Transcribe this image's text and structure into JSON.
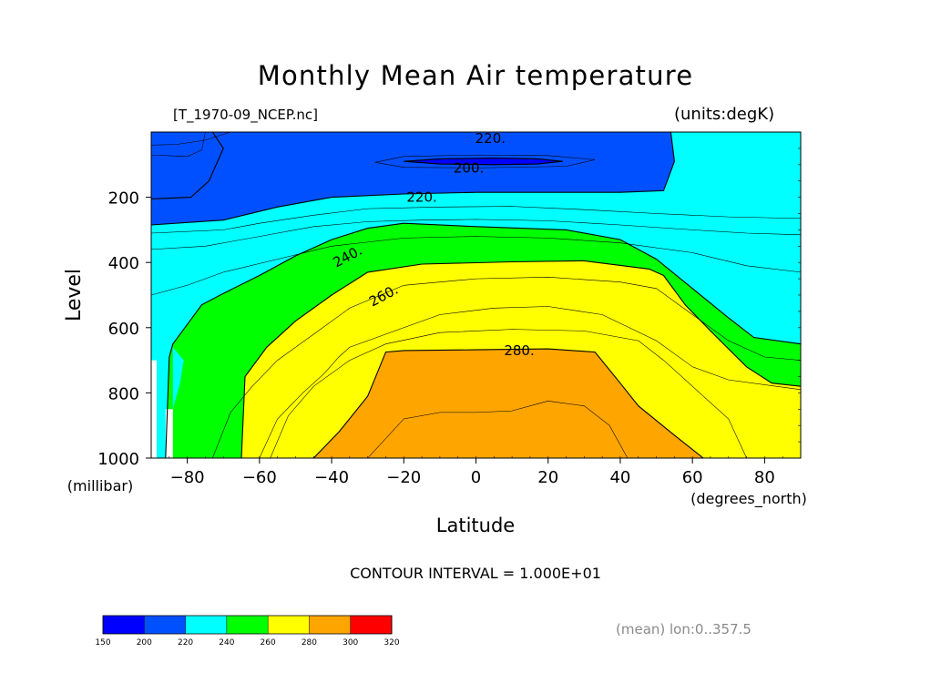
{
  "title": "Monthly Mean Air temperature",
  "dataset": "[T_1970-09_NCEP.nc]",
  "units": "(units:degK)",
  "contour_note": "CONTOUR INTERVAL = 1.000E+01",
  "mean_note": "(mean) lon:0..357.5",
  "chart_data": {
    "type": "heatmap",
    "subtype": "filled contour",
    "title": "Monthly Mean Air temperature",
    "xlabel": "Latitude",
    "xunits": "(degrees_north)",
    "ylabel": "Level",
    "yunits": "(millibar)",
    "xlim": [
      -90,
      90
    ],
    "ylim": [
      1000,
      0
    ],
    "x_ticks": [
      -80,
      -60,
      -40,
      -20,
      0,
      20,
      40,
      60,
      80
    ],
    "x_tick_labels": [
      "−80",
      "−60",
      "−40",
      "−20",
      "0",
      "20",
      "40",
      "60",
      "80"
    ],
    "y_ticks": [
      200,
      400,
      600,
      800,
      1000
    ],
    "y_tick_labels": [
      "200",
      "400",
      "600",
      "800",
      "1000"
    ],
    "contour_interval": 10,
    "contour_labels": [
      {
        "text": "220.",
        "lat": 4,
        "level": 20
      },
      {
        "text": "200.",
        "lat": -2,
        "level": 110
      },
      {
        "text": "220.",
        "lat": -15,
        "level": 200
      },
      {
        "text": "240.",
        "lat": -35,
        "level": 380
      },
      {
        "text": "260.",
        "lat": -25,
        "level": 500
      },
      {
        "text": "280.",
        "lat": 12,
        "level": 670
      }
    ],
    "colorbar": {
      "boundaries": [
        150,
        200,
        220,
        240,
        260,
        280,
        300,
        320
      ],
      "labels": [
        "150",
        "200",
        "220",
        "240",
        "260",
        "280",
        "300",
        "320"
      ],
      "colors": [
        "#0000ff",
        "#0050ff",
        "#00ffff",
        "#00ff00",
        "#ffff00",
        "#ffa500",
        "#ff0000"
      ]
    },
    "regions": [
      {
        "range": "<200",
        "color": "#0000ff",
        "points": [
          [
            -90,
            0
          ],
          [
            -73,
            0
          ],
          [
            -70,
            50
          ],
          [
            -74,
            150
          ],
          [
            -79,
            200
          ],
          [
            -90,
            205
          ]
        ]
      },
      {
        "range": "200-220",
        "color": "#0050ff",
        "points": [
          [
            -90,
            0
          ],
          [
            54,
            0
          ],
          [
            55,
            90
          ],
          [
            52,
            180
          ],
          [
            40,
            185
          ],
          [
            20,
            185
          ],
          [
            0,
            185
          ],
          [
            -20,
            190
          ],
          [
            -40,
            200
          ],
          [
            -55,
            230
          ],
          [
            -70,
            270
          ],
          [
            -90,
            285
          ]
        ]
      },
      {
        "range": "<200",
        "color": "#0000ff",
        "points": [
          [
            -20,
            90
          ],
          [
            -10,
            82
          ],
          [
            5,
            80
          ],
          [
            17,
            82
          ],
          [
            24,
            90
          ],
          [
            17,
            98
          ],
          [
            5,
            100
          ],
          [
            -10,
            98
          ]
        ]
      },
      {
        "range": "240-260",
        "color": "#00ff00",
        "points": [
          [
            90,
            650
          ],
          [
            77,
            630
          ],
          [
            70,
            570
          ],
          [
            60,
            480
          ],
          [
            50,
            390
          ],
          [
            40,
            330
          ],
          [
            25,
            300
          ],
          [
            0,
            290
          ],
          [
            -20,
            280
          ],
          [
            -30,
            295
          ],
          [
            -40,
            330
          ],
          [
            -50,
            380
          ],
          [
            -60,
            440
          ],
          [
            -70,
            495
          ],
          [
            -76,
            530
          ],
          [
            -84,
            650
          ],
          [
            -85,
            690
          ],
          [
            -86,
            1000
          ],
          [
            -84,
            1000
          ],
          [
            -84,
            850
          ],
          [
            -82,
            770
          ],
          [
            -81,
            700
          ],
          [
            -84,
            660
          ],
          [
            -84,
            1000
          ],
          [
            90,
            1000
          ]
        ]
      },
      {
        "range": "260-280",
        "color": "#ffff00",
        "points": [
          [
            90,
            1000
          ],
          [
            90,
            780
          ],
          [
            82,
            770
          ],
          [
            75,
            720
          ],
          [
            65,
            610
          ],
          [
            58,
            530
          ],
          [
            52,
            440
          ],
          [
            48,
            420
          ],
          [
            30,
            395
          ],
          [
            10,
            398
          ],
          [
            -15,
            405
          ],
          [
            -30,
            430
          ],
          [
            -40,
            500
          ],
          [
            -50,
            580
          ],
          [
            -58,
            660
          ],
          [
            -64,
            750
          ],
          [
            -65,
            1000
          ]
        ]
      },
      {
        "range": "280-300",
        "color": "#ffa500",
        "points": [
          [
            63,
            1000
          ],
          [
            55,
            930
          ],
          [
            45,
            840
          ],
          [
            40,
            770
          ],
          [
            33,
            675
          ],
          [
            20,
            665
          ],
          [
            0,
            668
          ],
          [
            -20,
            670
          ],
          [
            -25,
            675
          ],
          [
            -30,
            810
          ],
          [
            -38,
            920
          ],
          [
            -45,
            1000
          ]
        ]
      }
    ],
    "contour_lines": [
      {
        "kind": "major",
        "points": [
          [
            -20,
            90
          ],
          [
            -10,
            82
          ],
          [
            5,
            80
          ],
          [
            17,
            82
          ],
          [
            24,
            90
          ],
          [
            17,
            98
          ],
          [
            5,
            100
          ],
          [
            -10,
            98
          ],
          [
            -20,
            90
          ]
        ]
      },
      {
        "kind": "major",
        "points": [
          [
            -90,
            205
          ],
          [
            -79,
            200
          ],
          [
            -74,
            150
          ],
          [
            -70,
            50
          ],
          [
            -73,
            0
          ]
        ]
      },
      {
        "kind": "minor",
        "points": [
          [
            -28,
            93
          ],
          [
            -20,
            75
          ],
          [
            0,
            70
          ],
          [
            20,
            72
          ],
          [
            33,
            85
          ],
          [
            25,
            105
          ],
          [
            0,
            110
          ],
          [
            -20,
            108
          ],
          [
            -28,
            93
          ]
        ]
      },
      {
        "kind": "minor",
        "points": [
          [
            -90,
            40
          ],
          [
            -83,
            38
          ],
          [
            -75,
            25
          ],
          [
            -68,
            0
          ]
        ]
      },
      {
        "kind": "minor",
        "points": [
          [
            -90,
            70
          ],
          [
            -80,
            75
          ],
          [
            -76,
            55
          ],
          [
            -75,
            0
          ]
        ]
      },
      {
        "kind": "major",
        "points": [
          [
            -90,
            285
          ],
          [
            -70,
            270
          ],
          [
            -55,
            230
          ],
          [
            -40,
            200
          ],
          [
            -20,
            190
          ],
          [
            0,
            185
          ],
          [
            20,
            185
          ],
          [
            40,
            185
          ],
          [
            52,
            180
          ],
          [
            55,
            90
          ],
          [
            54,
            0
          ]
        ]
      },
      {
        "kind": "minor",
        "points": [
          [
            -90,
            310
          ],
          [
            -70,
            300
          ],
          [
            -60,
            280
          ],
          [
            -45,
            255
          ],
          [
            -30,
            235
          ],
          [
            -10,
            230
          ],
          [
            10,
            228
          ],
          [
            30,
            238
          ],
          [
            50,
            250
          ],
          [
            70,
            260
          ],
          [
            90,
            265
          ]
        ]
      },
      {
        "kind": "minor",
        "points": [
          [
            -90,
            360
          ],
          [
            -75,
            350
          ],
          [
            -60,
            320
          ],
          [
            -45,
            290
          ],
          [
            -30,
            275
          ],
          [
            -15,
            270
          ],
          [
            0,
            268
          ],
          [
            20,
            272
          ],
          [
            40,
            285
          ],
          [
            60,
            300
          ],
          [
            75,
            310
          ],
          [
            90,
            315
          ]
        ]
      },
      {
        "kind": "major",
        "points": [
          [
            90,
            650
          ],
          [
            77,
            630
          ],
          [
            70,
            570
          ],
          [
            60,
            480
          ],
          [
            50,
            390
          ],
          [
            40,
            330
          ],
          [
            25,
            300
          ],
          [
            0,
            290
          ],
          [
            -20,
            280
          ],
          [
            -30,
            295
          ],
          [
            -40,
            330
          ],
          [
            -50,
            380
          ],
          [
            -60,
            440
          ],
          [
            -70,
            495
          ],
          [
            -76,
            530
          ],
          [
            -84,
            650
          ],
          [
            -85,
            690
          ],
          [
            -86,
            1000
          ]
        ]
      },
      {
        "kind": "minor",
        "points": [
          [
            90,
            430
          ],
          [
            75,
            410
          ],
          [
            60,
            370
          ],
          [
            40,
            340
          ],
          [
            20,
            325
          ],
          [
            0,
            320
          ],
          [
            -20,
            325
          ],
          [
            -40,
            350
          ],
          [
            -55,
            390
          ],
          [
            -70,
            430
          ],
          [
            -80,
            470
          ],
          [
            -90,
            500
          ]
        ]
      },
      {
        "kind": "major",
        "points": [
          [
            90,
            780
          ],
          [
            82,
            770
          ],
          [
            75,
            720
          ],
          [
            65,
            610
          ],
          [
            58,
            530
          ],
          [
            52,
            440
          ],
          [
            48,
            420
          ],
          [
            30,
            395
          ],
          [
            10,
            398
          ],
          [
            -15,
            405
          ],
          [
            -30,
            430
          ],
          [
            -40,
            500
          ],
          [
            -50,
            580
          ],
          [
            -58,
            660
          ],
          [
            -64,
            750
          ],
          [
            -65,
            1000
          ]
        ]
      },
      {
        "kind": "minor",
        "points": [
          [
            90,
            700
          ],
          [
            80,
            690
          ],
          [
            70,
            640
          ],
          [
            60,
            560
          ],
          [
            50,
            480
          ],
          [
            40,
            460
          ],
          [
            20,
            445
          ],
          [
            0,
            450
          ],
          [
            -20,
            470
          ],
          [
            -35,
            540
          ],
          [
            -45,
            620
          ],
          [
            -55,
            700
          ],
          [
            -62,
            780
          ],
          [
            -68,
            860
          ],
          [
            -73,
            1000
          ]
        ]
      },
      {
        "kind": "minor",
        "points": [
          [
            -60,
            1000
          ],
          [
            -55,
            880
          ],
          [
            -48,
            800
          ],
          [
            -42,
            740
          ],
          [
            -38,
            690
          ],
          [
            -35,
            660
          ],
          [
            -30,
            640
          ],
          [
            -20,
            600
          ],
          [
            -10,
            560
          ],
          [
            5,
            540
          ],
          [
            20,
            535
          ],
          [
            35,
            560
          ],
          [
            50,
            640
          ],
          [
            60,
            720
          ],
          [
            70,
            760
          ],
          [
            90,
            790
          ]
        ]
      },
      {
        "kind": "major",
        "points": [
          [
            63,
            1000
          ],
          [
            55,
            930
          ],
          [
            45,
            840
          ],
          [
            40,
            770
          ],
          [
            33,
            675
          ],
          [
            20,
            665
          ],
          [
            0,
            668
          ],
          [
            -20,
            670
          ],
          [
            -25,
            675
          ],
          [
            -30,
            810
          ],
          [
            -38,
            920
          ],
          [
            -45,
            1000
          ]
        ]
      },
      {
        "kind": "minor",
        "points": [
          [
            -30,
            1000
          ],
          [
            -20,
            880
          ],
          [
            -10,
            860
          ],
          [
            0,
            860
          ],
          [
            10,
            855
          ],
          [
            20,
            825
          ],
          [
            30,
            840
          ],
          [
            37,
            900
          ],
          [
            42,
            1000
          ]
        ]
      },
      {
        "kind": "minor",
        "points": [
          [
            75,
            1000
          ],
          [
            70,
            880
          ],
          [
            62,
            800
          ],
          [
            52,
            700
          ],
          [
            45,
            640
          ],
          [
            30,
            610
          ],
          [
            10,
            605
          ],
          [
            -10,
            615
          ],
          [
            -25,
            650
          ],
          [
            -35,
            700
          ],
          [
            -45,
            780
          ],
          [
            -52,
            870
          ],
          [
            -57,
            1000
          ]
        ]
      }
    ]
  }
}
